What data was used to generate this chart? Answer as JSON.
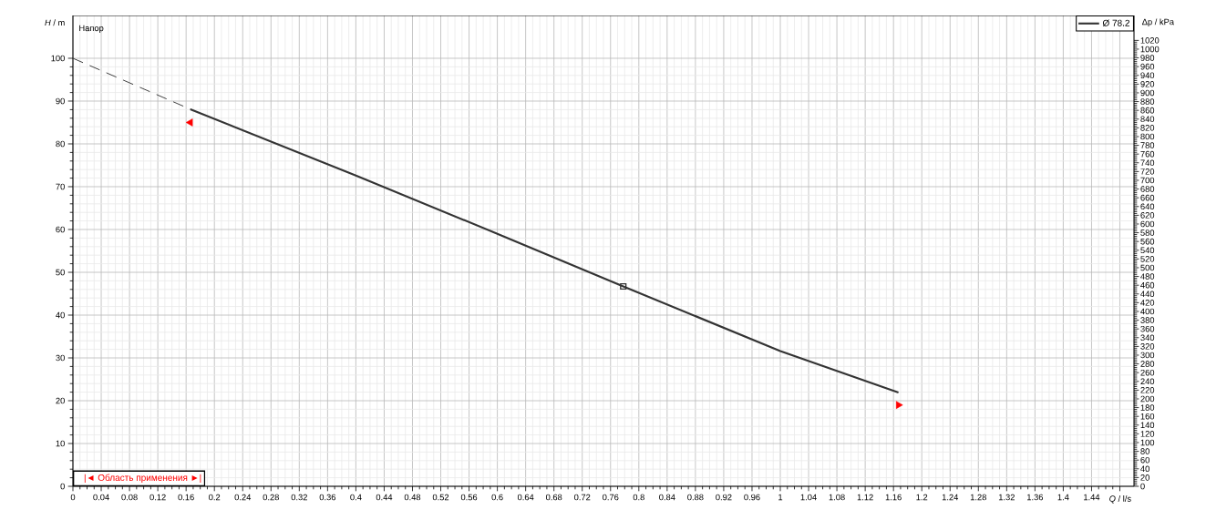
{
  "chart_data": {
    "type": "line",
    "xlabel": "*Q* / l/s",
    "ylabel": "*H* / m",
    "y2label": "Δp / kPa",
    "annotations": [
      "Напор",
      "|◄ Область применения ►|"
    ],
    "series": [
      {
        "name": "Ø 78.2",
        "color": "#333333",
        "x": [
          0.166,
          0.4,
          0.6,
          0.778,
          1.0,
          1.167
        ],
        "values": [
          88.1,
          72.6,
          59.0,
          46.7,
          31.6,
          21.9
        ]
      },
      {
        "color": "#333333",
        "line_style": "dashed",
        "x": [
          0,
          0.166
        ],
        "values": [
          100,
          88.1
        ]
      },
      {
        "type": "scatter",
        "marker": "square",
        "color": "#333333",
        "x": [
          0.778
        ],
        "values": [
          46.7
        ]
      },
      {
        "type": "scatter",
        "marker": "triangle",
        "color": "#ff0000",
        "x": [
          0.166,
          1.167
        ],
        "values": [
          85,
          19
        ]
      }
    ],
    "xlim": [
      0,
      1.5
    ],
    "ylim": [
      0,
      110
    ],
    "y2lim": [
      0,
      1077
    ],
    "xticks": [
      0,
      0.04,
      0.08,
      0.12,
      0.16,
      0.2,
      0.24,
      0.28,
      0.32,
      0.36,
      0.4,
      0.44,
      0.48,
      0.52,
      0.56,
      0.6,
      0.64,
      0.68,
      0.72,
      0.76,
      0.8,
      0.84,
      0.88,
      0.92,
      0.96,
      1,
      1.04,
      1.08,
      1.12,
      1.16,
      1.2,
      1.24,
      1.28,
      1.32,
      1.36,
      1.4,
      1.44,
      {
        "value": 1.48,
        "label": null
      }
    ],
    "yticks": [
      0,
      10,
      20,
      30,
      40,
      50,
      60,
      70,
      80,
      90,
      100
    ],
    "y2ticks": [
      0,
      20,
      40,
      60,
      80,
      100,
      120,
      140,
      160,
      180,
      200,
      220,
      240,
      260,
      280,
      300,
      320,
      340,
      360,
      380,
      400,
      420,
      440,
      460,
      480,
      500,
      520,
      540,
      560,
      580,
      600,
      620,
      640,
      660,
      680,
      700,
      720,
      740,
      760,
      780,
      800,
      820,
      840,
      860,
      880,
      900,
      920,
      940,
      960,
      980,
      1000,
      1020
    ],
    "grid": true,
    "legend": "top right"
  }
}
